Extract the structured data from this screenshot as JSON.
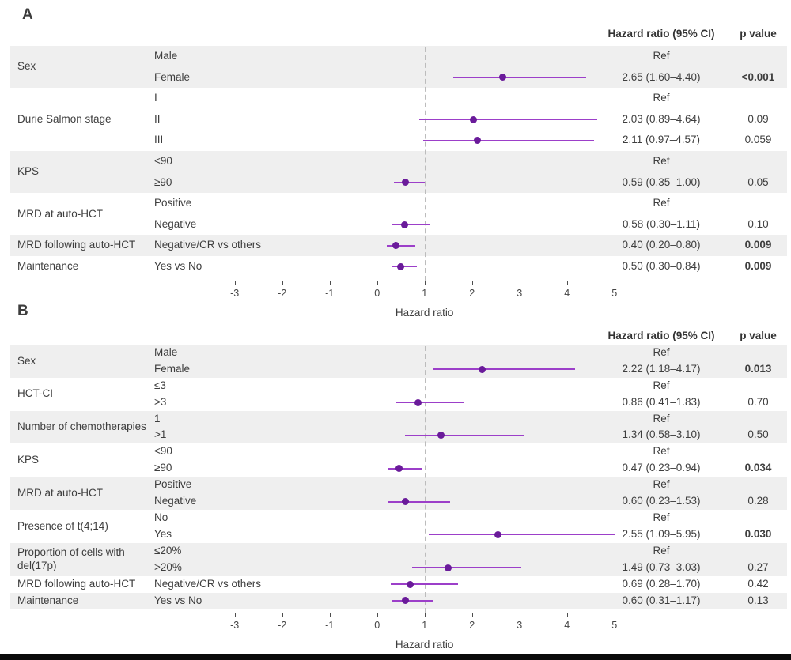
{
  "figure": {
    "panel_a_label": "A",
    "panel_b_label": "B"
  },
  "style": {
    "marker_color": "#6a1b9a",
    "ci_color": "#9c3fc9",
    "band_color": "#efefef",
    "ref_line_color": "#bcbcbc",
    "text_color": "#3e3e3e"
  },
  "chart_data": [
    {
      "type": "forest",
      "panel_label": "A",
      "columns": {
        "hr_header": "Hazard ratio (95% CI)",
        "p_header": "p value"
      },
      "xlabel": "Hazard ratio",
      "xlim": [
        -3,
        5
      ],
      "x_ticks": [
        -3,
        -2,
        -1,
        0,
        1,
        2,
        3,
        4,
        5
      ],
      "ref_line": 1,
      "groups": [
        {
          "label": "Sex",
          "rows": [
            {
              "sub": "Male",
              "hr_text": "Ref",
              "p": "",
              "p_bold": false,
              "est": null
            },
            {
              "sub": "Female",
              "hr_text": "2.65 (1.60–4.40)",
              "p": "<0.001",
              "p_bold": true,
              "est": {
                "hr": 2.65,
                "lo": 1.6,
                "hi": 4.4
              }
            }
          ]
        },
        {
          "label": "Durie Salmon stage",
          "rows": [
            {
              "sub": "I",
              "hr_text": "Ref",
              "p": "",
              "p_bold": false,
              "est": null
            },
            {
              "sub": "II",
              "hr_text": "2.03 (0.89–4.64)",
              "p": "0.09",
              "p_bold": false,
              "est": {
                "hr": 2.03,
                "lo": 0.89,
                "hi": 4.64
              }
            },
            {
              "sub": "III",
              "hr_text": "2.11 (0.97–4.57)",
              "p": "0.059",
              "p_bold": false,
              "est": {
                "hr": 2.11,
                "lo": 0.97,
                "hi": 4.57
              }
            }
          ]
        },
        {
          "label": "KPS",
          "rows": [
            {
              "sub": "<90",
              "hr_text": "Ref",
              "p": "",
              "p_bold": false,
              "est": null
            },
            {
              "sub": "≥90",
              "hr_text": "0.59 (0.35–1.00)",
              "p": "0.05",
              "p_bold": false,
              "est": {
                "hr": 0.59,
                "lo": 0.35,
                "hi": 1.0
              }
            }
          ]
        },
        {
          "label": "MRD at auto-HCT",
          "rows": [
            {
              "sub": "Positive",
              "hr_text": "Ref",
              "p": "",
              "p_bold": false,
              "est": null
            },
            {
              "sub": "Negative",
              "hr_text": "0.58 (0.30–1.11)",
              "p": "0.10",
              "p_bold": false,
              "est": {
                "hr": 0.58,
                "lo": 0.3,
                "hi": 1.11
              }
            }
          ]
        },
        {
          "label": "MRD following auto-HCT",
          "rows": [
            {
              "sub": "Negative/CR vs others",
              "hr_text": "0.40 (0.20–0.80)",
              "p": "0.009",
              "p_bold": true,
              "est": {
                "hr": 0.4,
                "lo": 0.2,
                "hi": 0.8
              }
            }
          ]
        },
        {
          "label": "Maintenance",
          "rows": [
            {
              "sub": "Yes vs No",
              "hr_text": "0.50 (0.30–0.84)",
              "p": "0.009",
              "p_bold": true,
              "est": {
                "hr": 0.5,
                "lo": 0.3,
                "hi": 0.84
              }
            }
          ]
        }
      ]
    },
    {
      "type": "forest",
      "panel_label": "B",
      "columns": {
        "hr_header": "Hazard ratio (95% CI)",
        "p_header": "p value"
      },
      "xlabel": "Hazard ratio",
      "xlim": [
        -3,
        5
      ],
      "x_ticks": [
        -3,
        -2,
        -1,
        0,
        1,
        2,
        3,
        4,
        5
      ],
      "ref_line": 1,
      "groups": [
        {
          "label": "Sex",
          "rows": [
            {
              "sub": "Male",
              "hr_text": "Ref",
              "p": "",
              "p_bold": false,
              "est": null
            },
            {
              "sub": "Female",
              "hr_text": "2.22 (1.18–4.17)",
              "p": "0.013",
              "p_bold": true,
              "est": {
                "hr": 2.22,
                "lo": 1.18,
                "hi": 4.17
              }
            }
          ]
        },
        {
          "label": "HCT-CI",
          "rows": [
            {
              "sub": "≤3",
              "hr_text": "Ref",
              "p": "",
              "p_bold": false,
              "est": null
            },
            {
              "sub": ">3",
              "hr_text": "0.86 (0.41–1.83)",
              "p": "0.70",
              "p_bold": false,
              "est": {
                "hr": 0.86,
                "lo": 0.41,
                "hi": 1.83
              }
            }
          ]
        },
        {
          "label": "Number of chemotherapies",
          "rows": [
            {
              "sub": "1",
              "hr_text": "Ref",
              "p": "",
              "p_bold": false,
              "est": null
            },
            {
              "sub": ">1",
              "hr_text": "1.34 (0.58–3.10)",
              "p": "0.50",
              "p_bold": false,
              "est": {
                "hr": 1.34,
                "lo": 0.58,
                "hi": 3.1
              }
            }
          ]
        },
        {
          "label": "KPS",
          "rows": [
            {
              "sub": "<90",
              "hr_text": "Ref",
              "p": "",
              "p_bold": false,
              "est": null
            },
            {
              "sub": "≥90",
              "hr_text": "0.47 (0.23–0.94)",
              "p": "0.034",
              "p_bold": true,
              "est": {
                "hr": 0.47,
                "lo": 0.23,
                "hi": 0.94
              }
            }
          ]
        },
        {
          "label": "MRD at auto-HCT",
          "rows": [
            {
              "sub": "Positive",
              "hr_text": "Ref",
              "p": "",
              "p_bold": false,
              "est": null
            },
            {
              "sub": "Negative",
              "hr_text": "0.60 (0.23–1.53)",
              "p": "0.28",
              "p_bold": false,
              "est": {
                "hr": 0.6,
                "lo": 0.23,
                "hi": 1.53
              }
            }
          ]
        },
        {
          "label": "Presence of t(4;14)",
          "rows": [
            {
              "sub": "No",
              "hr_text": "Ref",
              "p": "",
              "p_bold": false,
              "est": null
            },
            {
              "sub": "Yes",
              "hr_text": "2.55 (1.09–5.95)",
              "p": "0.030",
              "p_bold": true,
              "est": {
                "hr": 2.55,
                "lo": 1.09,
                "hi": 5.95
              }
            }
          ]
        },
        {
          "label": "Proportion of cells with del(17p)",
          "rows": [
            {
              "sub": "≤20%",
              "hr_text": "Ref",
              "p": "",
              "p_bold": false,
              "est": null
            },
            {
              "sub": ">20%",
              "hr_text": "1.49 (0.73–3.03)",
              "p": "0.27",
              "p_bold": false,
              "est": {
                "hr": 1.49,
                "lo": 0.73,
                "hi": 3.03
              }
            }
          ]
        },
        {
          "label": "MRD following auto-HCT",
          "rows": [
            {
              "sub": "Negative/CR vs others",
              "hr_text": "0.69 (0.28–1.70)",
              "p": "0.42",
              "p_bold": false,
              "est": {
                "hr": 0.69,
                "lo": 0.28,
                "hi": 1.7
              }
            }
          ]
        },
        {
          "label": "Maintenance",
          "rows": [
            {
              "sub": "Yes vs No",
              "hr_text": "0.60 (0.31–1.17)",
              "p": "0.13",
              "p_bold": false,
              "est": {
                "hr": 0.6,
                "lo": 0.31,
                "hi": 1.17
              }
            }
          ]
        }
      ]
    }
  ]
}
